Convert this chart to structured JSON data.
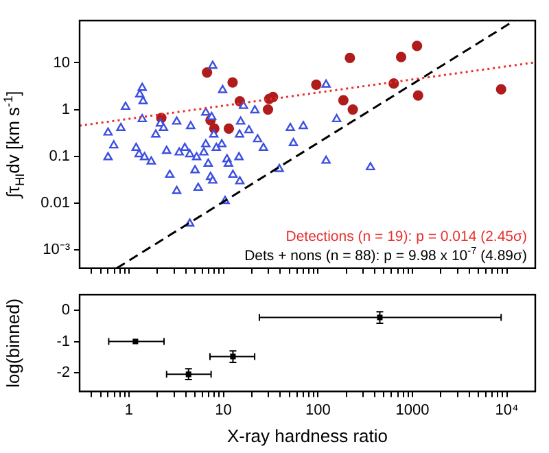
{
  "chart_data": [
    {
      "type": "scatter",
      "ylabel": "∫τ$_{HI}$dv [km s$^{-1}$]",
      "log": "xy",
      "xlim": [
        0.3,
        20000
      ],
      "ylim": [
        0.0004,
        80
      ],
      "xticks": [
        {
          "value": 0.4,
          "label": null
        },
        {
          "value": 0.5,
          "label": null
        },
        {
          "value": 0.6,
          "label": null
        },
        {
          "value": 0.7,
          "label": null
        },
        {
          "value": 0.8,
          "label": null
        },
        {
          "value": 0.9,
          "label": null
        },
        1,
        {
          "value": 2,
          "label": null
        },
        {
          "value": 3,
          "label": null
        },
        {
          "value": 4,
          "label": null
        },
        {
          "value": 5,
          "label": null
        },
        {
          "value": 6,
          "label": null
        },
        {
          "value": 7,
          "label": null
        },
        {
          "value": 8,
          "label": null
        },
        {
          "value": 9,
          "label": null
        },
        10,
        {
          "value": 20,
          "label": null
        },
        {
          "value": 30,
          "label": null
        },
        {
          "value": 40,
          "label": null
        },
        {
          "value": 50,
          "label": null
        },
        {
          "value": 60,
          "label": null
        },
        {
          "value": 70,
          "label": null
        },
        {
          "value": 80,
          "label": null
        },
        {
          "value": 90,
          "label": null
        },
        100,
        {
          "value": 200,
          "label": null
        },
        {
          "value": 300,
          "label": null
        },
        {
          "value": 400,
          "label": null
        },
        {
          "value": 500,
          "label": null
        },
        {
          "value": 600,
          "label": null
        },
        {
          "value": 700,
          "label": null
        },
        {
          "value": 800,
          "label": null
        },
        {
          "value": 900,
          "label": null
        },
        1000,
        {
          "value": 2000,
          "label": null
        },
        {
          "value": 3000,
          "label": null
        },
        {
          "value": 4000,
          "label": null
        },
        {
          "value": 5000,
          "label": null
        },
        {
          "value": 6000,
          "label": null
        },
        {
          "value": 7000,
          "label": null
        },
        {
          "value": 8000,
          "label": null
        },
        {
          "value": 9000,
          "label": null
        },
        10000
      ],
      "yticks": [
        {
          "value": 0.001,
          "label": "10⁻³"
        },
        0.01,
        0.1,
        1,
        10
      ],
      "tick_labels": "y",
      "series": [
        {
          "type": "line",
          "color": "#e8302f",
          "line_style": "dotted",
          "marker": "none",
          "x": [
            0.3,
            20000
          ],
          "values": [
            0.45,
            10.2
          ]
        },
        {
          "type": "line",
          "color": "#000000",
          "line_style": "dashed",
          "marker": "none",
          "x": [
            0.74,
            12000
          ],
          "values": [
            0.0004,
            80
          ]
        },
        {
          "type": "scatter",
          "color": "#3c4fe0",
          "marker": "triangle",
          "x": [
            0.6,
            0.6,
            0.69,
            0.82,
            0.92,
            1.19,
            1.28,
            1.3,
            1.38,
            1.41,
            1.38,
            1.46,
            1.72,
            1.92,
            2.15,
            2.32,
            2.5,
            2.7,
            3.2,
            3.2,
            3.4,
            3.9,
            4.5,
            4.4,
            5.2,
            5.0,
            5.4,
            4.4,
            6.2,
            6.5,
            6.5,
            6.9,
            7.3,
            7.7,
            7.7,
            7.5,
            7.9,
            8.4,
            9.6,
            9.8,
            10.4,
            10.9,
            11.3,
            12.6,
            14.6,
            14.8,
            15.2,
            14.9,
            16.3,
            18.6,
            21.5,
            23,
            26.5,
            39,
            51,
            55,
            70,
            122,
            158,
            122,
            360
          ],
          "values": [
            0.32,
            0.095,
            0.17,
            0.4,
            1.14,
            0.15,
            0.11,
            2.1,
            2.9,
            1.5,
            0.62,
            0.095,
            0.077,
            0.29,
            0.5,
            0.4,
            0.13,
            0.04,
            0.018,
            0.55,
            0.12,
            0.15,
            0.44,
            0.11,
            0.095,
            0.05,
            0.021,
            0.0036,
            0.12,
            0.18,
            0.86,
            0.069,
            0.036,
            8.6,
            0.03,
            0.69,
            0.29,
            0.15,
            0.18,
            2.6,
            0.011,
            0.086,
            0.069,
            0.04,
            0.095,
            0.29,
            0.55,
            0.029,
            1.19,
            0.36,
            0.96,
            0.23,
            0.15,
            0.053,
            0.4,
            0.19,
            0.44,
            3.4,
            0.62,
            0.08,
            0.058
          ]
        },
        {
          "type": "scatter",
          "color": "#b01c1c",
          "marker": "circle",
          "x": [
            2.2,
            6.7,
            12.5,
            7.3,
            8.0,
            11.4,
            14.9,
            29.6,
            33.5,
            30.5,
            96,
            218,
            186,
            234,
            635,
            760,
            1120,
            1150,
            8700
          ],
          "values": [
            0.66,
            6.2,
            3.8,
            0.59,
            0.39,
            0.39,
            1.5,
            1.0,
            1.85,
            1.68,
            3.4,
            12.7,
            1.58,
            1.0,
            3.6,
            13.3,
            23,
            2.0,
            2.7
          ]
        }
      ],
      "annotations": [
        "Detections (n = 19): p = 0.014 (2.45σ)",
        "Dets + nons (n = 88): p = 9.98 x 10$^{-7}$ (4.89σ)"
      ]
    },
    {
      "type": "scatter",
      "xlabel": "X-ray hardness ratio",
      "ylabel": "log(binned)",
      "log": "x",
      "xlim": [
        0.3,
        20000
      ],
      "ylim": [
        -2.6,
        0.5
      ],
      "xticks": [
        {
          "value": 0.4,
          "label": null
        },
        {
          "value": 0.5,
          "label": null
        },
        {
          "value": 0.6,
          "label": null
        },
        {
          "value": 0.7,
          "label": null
        },
        {
          "value": 0.8,
          "label": null
        },
        {
          "value": 0.9,
          "label": null
        },
        1,
        {
          "value": 2,
          "label": null
        },
        {
          "value": 3,
          "label": null
        },
        {
          "value": 4,
          "label": null
        },
        {
          "value": 5,
          "label": null
        },
        {
          "value": 6,
          "label": null
        },
        {
          "value": 7,
          "label": null
        },
        {
          "value": 8,
          "label": null
        },
        {
          "value": 9,
          "label": null
        },
        10,
        {
          "value": 20,
          "label": null
        },
        {
          "value": 30,
          "label": null
        },
        {
          "value": 40,
          "label": null
        },
        {
          "value": 50,
          "label": null
        },
        {
          "value": 60,
          "label": null
        },
        {
          "value": 70,
          "label": null
        },
        {
          "value": 80,
          "label": null
        },
        {
          "value": 90,
          "label": null
        },
        100,
        {
          "value": 200,
          "label": null
        },
        {
          "value": 300,
          "label": null
        },
        {
          "value": 400,
          "label": null
        },
        {
          "value": 500,
          "label": null
        },
        {
          "value": 600,
          "label": null
        },
        {
          "value": 700,
          "label": null
        },
        {
          "value": 800,
          "label": null
        },
        {
          "value": 900,
          "label": null
        },
        1000,
        {
          "value": 2000,
          "label": null
        },
        {
          "value": 3000,
          "label": null
        },
        {
          "value": 4000,
          "label": null
        },
        {
          "value": 5000,
          "label": null
        },
        {
          "value": 6000,
          "label": null
        },
        {
          "value": 7000,
          "label": null
        },
        {
          "value": 8000,
          "label": null
        },
        {
          "value": 9000,
          "label": null
        },
        {
          "value": 10000,
          "label": "10⁴"
        }
      ],
      "yticks": [
        -2,
        -1,
        0
      ],
      "series": [
        {
          "type": "scatter",
          "color": "#000000",
          "marker": "square",
          "x": [
            1.17,
            4.27,
            12.6,
            452
          ],
          "values": [
            -1,
            -2.05,
            -1.48,
            -0.23
          ],
          "errors": [
            null,
            [
              -2.22,
              -1.87
            ],
            [
              -1.67,
              -1.3
            ],
            [
              -0.42,
              -0.05
            ]
          ],
          "xerrors": [
            [
              0.61,
              2.35
            ],
            [
              2.5,
              7.4
            ],
            [
              7.2,
              21.4
            ],
            [
              24,
              8700
            ]
          ]
        }
      ]
    }
  ]
}
